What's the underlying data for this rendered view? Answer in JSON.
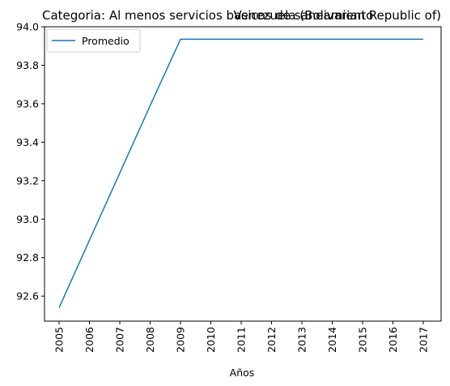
{
  "chart_data": {
    "type": "line",
    "title_left": "Categoria: Al menos servicios basicos de saneamiento",
    "title_right": "Venezuela (Bolivarian Republic of)",
    "xlabel": "Años",
    "ylabel": "",
    "x": [
      "2005",
      "2006",
      "2007",
      "2008",
      "2009",
      "2010",
      "2011",
      "2012",
      "2013",
      "2014",
      "2015",
      "2016",
      "2017"
    ],
    "series": [
      {
        "name": "Promedio",
        "color": "#1f77b4",
        "values": [
          92.54,
          92.89,
          93.24,
          93.59,
          93.935,
          93.935,
          93.935,
          93.935,
          93.935,
          93.935,
          93.935,
          93.935,
          93.935
        ]
      }
    ],
    "ylim": [
      92.47,
      94.0
    ],
    "yticks": [
      "92.6",
      "92.8",
      "93.0",
      "93.2",
      "93.4",
      "93.6",
      "93.8",
      "94.0"
    ],
    "legend": "upper-left",
    "grid": false
  }
}
